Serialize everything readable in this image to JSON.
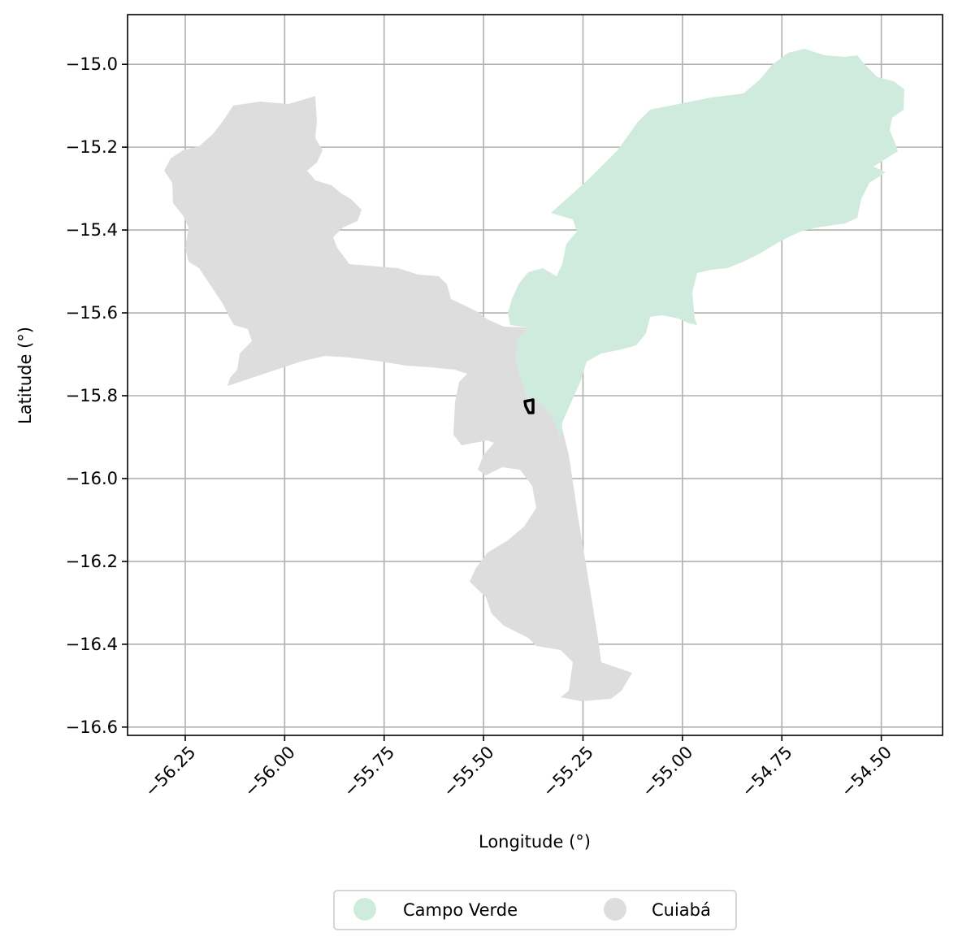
{
  "map": {
    "xlabel": "Longitude (°)",
    "ylabel": "Latitude (°)",
    "x_ticks": [
      "−56.25",
      "−56.00",
      "−55.75",
      "−55.50",
      "−55.25",
      "−55.00",
      "−54.75",
      "−54.50"
    ],
    "y_ticks": [
      "−15.0",
      "−15.2",
      "−15.4",
      "−15.6",
      "−15.8",
      "−16.0",
      "−16.2",
      "−16.4",
      "−16.6"
    ],
    "x_tick_values": [
      -56.25,
      -56.0,
      -55.75,
      -55.5,
      -55.25,
      -55.0,
      -54.75,
      -54.5
    ],
    "y_tick_values": [
      -15.0,
      -15.2,
      -15.4,
      -15.6,
      -15.8,
      -16.0,
      -16.2,
      -16.4,
      -16.6
    ],
    "xlim": [
      -56.395,
      -54.346
    ],
    "ylim": [
      -16.62,
      -14.88
    ],
    "grid": true,
    "legend_position": "bottom-center",
    "regions": [
      {
        "name": "Campo Verde",
        "color": "#cfebdd"
      },
      {
        "name": "Cuiabá",
        "color": "#dddddd"
      }
    ],
    "marker_color": "#000000"
  }
}
